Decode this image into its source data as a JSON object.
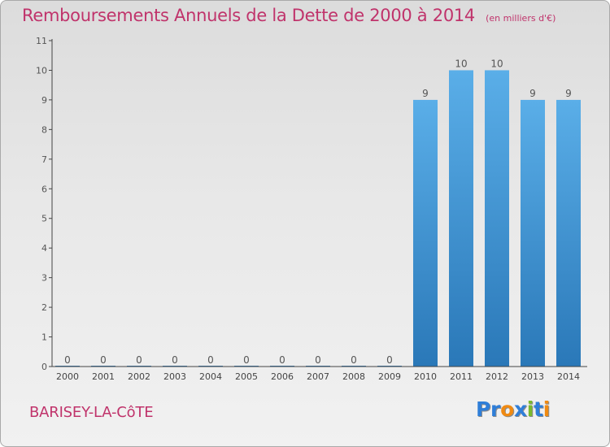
{
  "header": {
    "title": "Remboursements Annuels de la Dette de 2000 à 2014",
    "unit": "(en milliers d'€)"
  },
  "footer": {
    "commune": "BARISEY-LA-CôTE",
    "brand_letters": [
      {
        "ch": "P",
        "color": "#2f7ed8"
      },
      {
        "ch": "r",
        "color": "#2f7ed8"
      },
      {
        "ch": "o",
        "color": "#f08a12"
      },
      {
        "ch": "x",
        "color": "#2f7ed8"
      },
      {
        "ch": "i",
        "color": "#7aba2c"
      },
      {
        "ch": "t",
        "color": "#2f7ed8"
      },
      {
        "ch": "i",
        "color": "#f08a12"
      }
    ]
  },
  "chart_data": {
    "type": "bar",
    "title": "Remboursements Annuels de la Dette de 2000 à 2014",
    "unit": "(en milliers d'€)",
    "categories": [
      "2000",
      "2001",
      "2002",
      "2003",
      "2004",
      "2005",
      "2006",
      "2007",
      "2008",
      "2009",
      "2010",
      "2011",
      "2012",
      "2013",
      "2014"
    ],
    "values": [
      0,
      0,
      0,
      0,
      0,
      0,
      0,
      0,
      0,
      0,
      9,
      10,
      10,
      9,
      9
    ],
    "data_labels": [
      "0",
      "0",
      "0",
      "0",
      "0",
      "0",
      "0",
      "0",
      "0",
      "0",
      "9",
      "10",
      "10",
      "9",
      "9"
    ],
    "yticks": [
      0,
      1,
      2,
      3,
      4,
      5,
      6,
      7,
      8,
      9,
      10,
      11
    ],
    "ylim": [
      0,
      11
    ],
    "grid": false,
    "legend": "none",
    "colors": {
      "bar_top": "#5aaee8",
      "bar_bottom": "#2a78b8",
      "text": "#555555",
      "title": "#c0336b",
      "axis": "#444444"
    }
  }
}
